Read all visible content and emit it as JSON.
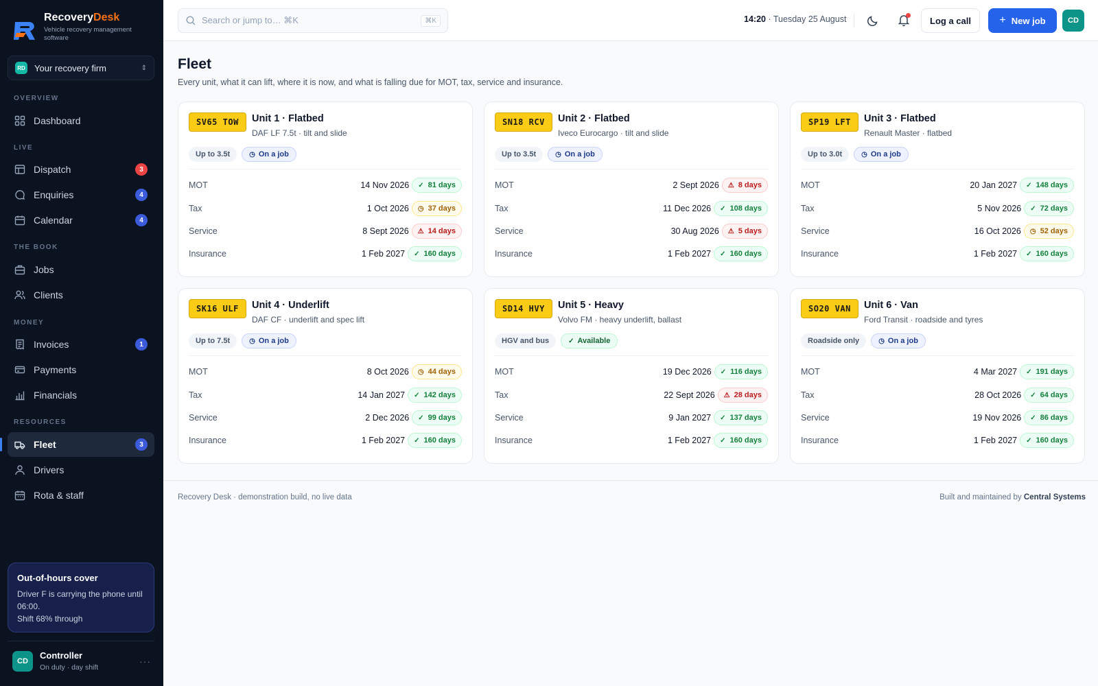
{
  "brand": {
    "name_main": "Recovery",
    "name_accent": "Desk",
    "tagline": "Vehicle recovery management software"
  },
  "firm": {
    "badge": "RD",
    "name": "Your recovery firm"
  },
  "sections": {
    "overview": "OVERVIEW",
    "live": "LIVE",
    "book": "THE BOOK",
    "money": "MONEY",
    "resources": "RESOURCES"
  },
  "nav": {
    "dashboard": {
      "label": "Dashboard"
    },
    "dispatch": {
      "label": "Dispatch",
      "badge": "3"
    },
    "enquiries": {
      "label": "Enquiries",
      "badge": "4"
    },
    "calendar": {
      "label": "Calendar",
      "badge": "4"
    },
    "jobs": {
      "label": "Jobs"
    },
    "clients": {
      "label": "Clients"
    },
    "invoices": {
      "label": "Invoices",
      "badge": "1"
    },
    "payments": {
      "label": "Payments"
    },
    "financials": {
      "label": "Financials"
    },
    "fleet": {
      "label": "Fleet",
      "badge": "3"
    },
    "drivers": {
      "label": "Drivers"
    },
    "rota": {
      "label": "Rota & staff"
    }
  },
  "ooh": {
    "title": "Out-of-hours cover",
    "line1": "Driver F is carrying the phone until 06:00.",
    "line2": "Shift 68% through",
    "shift_progress": 0.68
  },
  "user": {
    "initials": "CD",
    "name": "Controller",
    "status": "On duty · day shift"
  },
  "topbar": {
    "search_placeholder": "Search or jump to…  ⌘K",
    "search_kbd": "⌘K",
    "time": "14:20",
    "date": "· Tuesday 25 August",
    "log_call": "Log a call",
    "new_job": "New job",
    "avatar": "CD"
  },
  "page": {
    "title": "Fleet",
    "subtitle": "Every unit, what it can lift, where it is now, and what is falling due for MOT, tax, service and insurance."
  },
  "units": [
    {
      "plate": "SV65 TOW",
      "title": "Unit 1 · Flatbed",
      "desc": "DAF LF 7.5t · tilt and slide",
      "capacity": "Up to 3.5t",
      "status": "On a job",
      "rows": [
        {
          "label": "MOT",
          "date": "14 Nov 2026",
          "days": "81 days"
        },
        {
          "label": "Tax",
          "date": "1 Oct 2026",
          "days": "37 days"
        },
        {
          "label": "Service",
          "date": "8 Sept 2026",
          "days": "14 days"
        },
        {
          "label": "Insurance",
          "date": "1 Feb 2027",
          "days": "160 days"
        }
      ]
    },
    {
      "plate": "SN18 RCV",
      "title": "Unit 2 · Flatbed",
      "desc": "Iveco Eurocargo · tilt and slide",
      "capacity": "Up to 3.5t",
      "status": "On a job",
      "rows": [
        {
          "label": "MOT",
          "date": "2 Sept 2026",
          "days": "8 days"
        },
        {
          "label": "Tax",
          "date": "11 Dec 2026",
          "days": "108 days"
        },
        {
          "label": "Service",
          "date": "30 Aug 2026",
          "days": "5 days"
        },
        {
          "label": "Insurance",
          "date": "1 Feb 2027",
          "days": "160 days"
        }
      ]
    },
    {
      "plate": "SP19 LFT",
      "title": "Unit 3 · Flatbed",
      "desc": "Renault Master · flatbed",
      "capacity": "Up to 3.0t",
      "status": "On a job",
      "rows": [
        {
          "label": "MOT",
          "date": "20 Jan 2027",
          "days": "148 days"
        },
        {
          "label": "Tax",
          "date": "5 Nov 2026",
          "days": "72 days"
        },
        {
          "label": "Service",
          "date": "16 Oct 2026",
          "days": "52 days"
        },
        {
          "label": "Insurance",
          "date": "1 Feb 2027",
          "days": "160 days"
        }
      ]
    },
    {
      "plate": "SK16 ULF",
      "title": "Unit 4 · Underlift",
      "desc": "DAF CF · underlift and spec lift",
      "capacity": "Up to 7.5t",
      "status": "On a job",
      "rows": [
        {
          "label": "MOT",
          "date": "8 Oct 2026",
          "days": "44 days"
        },
        {
          "label": "Tax",
          "date": "14 Jan 2027",
          "days": "142 days"
        },
        {
          "label": "Service",
          "date": "2 Dec 2026",
          "days": "99 days"
        },
        {
          "label": "Insurance",
          "date": "1 Feb 2027",
          "days": "160 days"
        }
      ]
    },
    {
      "plate": "SD14 HVY",
      "title": "Unit 5 · Heavy",
      "desc": "Volvo FM · heavy underlift, ballast",
      "capacity": "HGV and bus",
      "status": "Available",
      "rows": [
        {
          "label": "MOT",
          "date": "19 Dec 2026",
          "days": "116 days"
        },
        {
          "label": "Tax",
          "date": "22 Sept 2026",
          "days": "28 days"
        },
        {
          "label": "Service",
          "date": "9 Jan 2027",
          "days": "137 days"
        },
        {
          "label": "Insurance",
          "date": "1 Feb 2027",
          "days": "160 days"
        }
      ]
    },
    {
      "plate": "SO20 VAN",
      "title": "Unit 6 · Van",
      "desc": "Ford Transit · roadside and tyres",
      "capacity": "Roadside only",
      "status": "On a job",
      "rows": [
        {
          "label": "MOT",
          "date": "4 Mar 2027",
          "days": "191 days"
        },
        {
          "label": "Tax",
          "date": "28 Oct 2026",
          "days": "64 days"
        },
        {
          "label": "Service",
          "date": "19 Nov 2026",
          "days": "86 days"
        },
        {
          "label": "Insurance",
          "date": "1 Feb 2027",
          "days": "160 days"
        }
      ]
    }
  ],
  "footer": {
    "left": "Recovery Desk · demonstration build, no live data",
    "right_prefix": "Built and maintained by",
    "right_brand": "Central Systems"
  },
  "colors": {
    "accent": "#2563eb",
    "brand_orange": "#f97316",
    "sidebar_bg": "#0b1220",
    "plate_yellow": "#facc15",
    "ok": "#15803d",
    "warn": "#a16207",
    "bad": "#b91c1c",
    "badge_red": "#ef4444",
    "badge_blue": "#3b5bdb"
  }
}
